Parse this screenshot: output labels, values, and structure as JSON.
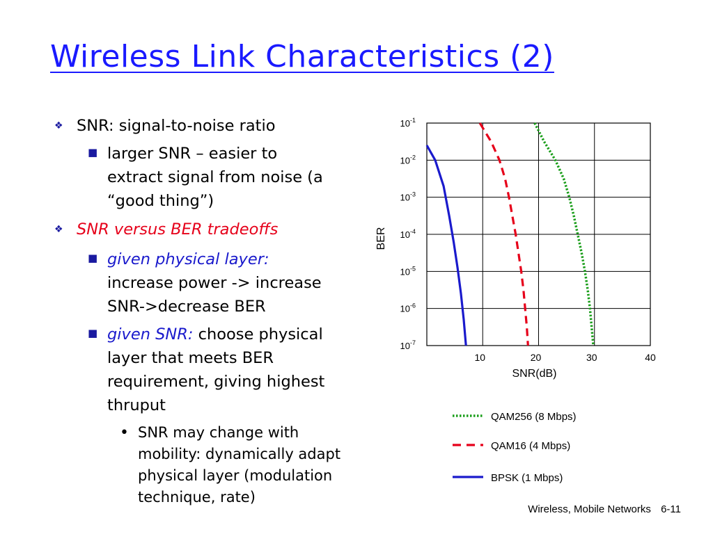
{
  "slide": {
    "title": "Wireless Link Characteristics (2)",
    "bullets": {
      "b1": "SNR: signal-to-noise ratio",
      "b1a": [
        "larger SNR – easier to",
        "extract signal from noise (a",
        "“good thing”)"
      ],
      "b2": "SNR versus BER tradeoffs",
      "b2a_em": "given physical layer:",
      "b2a_rest": [
        "increase power -> increase",
        "SNR->decrease BER"
      ],
      "b2b_em": "given SNR:",
      "b2b_rest": [
        "choose physical",
        "layer that meets BER",
        "requirement, giving highest",
        "thruput"
      ],
      "b2b1": [
        "SNR may change with",
        "mobility: dynamically adapt",
        "physical layer (modulation",
        "technique, rate)"
      ]
    },
    "footer": {
      "course": "Wireless, Mobile Networks",
      "page": "6-11"
    },
    "colors": {
      "title": "#1a1aff",
      "emphasis_red": "#e6001a",
      "emphasis_blue": "#1a1acc"
    }
  },
  "chart_data": {
    "type": "line",
    "xlabel": "SNR(dB)",
    "ylabel": "BER",
    "xlim": [
      0,
      40
    ],
    "y_log_exponent_range": [
      -7,
      -1
    ],
    "x_ticks": [
      "10",
      "20",
      "30",
      "40"
    ],
    "y_ticks": [
      {
        "base": "10",
        "exp": "-1"
      },
      {
        "base": "10",
        "exp": "-2"
      },
      {
        "base": "10",
        "exp": "-3"
      },
      {
        "base": "10",
        "exp": "-4"
      },
      {
        "base": "10",
        "exp": "-5"
      },
      {
        "base": "10",
        "exp": "-6"
      },
      {
        "base": "10",
        "exp": "-7"
      }
    ],
    "grid": true,
    "legend_position": "below",
    "series": [
      {
        "name": "QAM256 (8 Mbps)",
        "color": "#1a9e1a",
        "style": "dotted",
        "points": [
          [
            19.3,
            -1.0
          ],
          [
            21.0,
            -1.5
          ],
          [
            23.0,
            -2.0
          ],
          [
            24.5,
            -2.5
          ],
          [
            25.5,
            -3.0
          ],
          [
            26.3,
            -3.5
          ],
          [
            27.0,
            -4.0
          ],
          [
            27.7,
            -4.5
          ],
          [
            28.3,
            -5.0
          ],
          [
            28.8,
            -5.5
          ],
          [
            29.2,
            -6.0
          ],
          [
            29.5,
            -6.5
          ],
          [
            29.8,
            -7.0
          ]
        ]
      },
      {
        "name": "QAM16 (4 Mbps)",
        "color": "#e6001a",
        "style": "dashed",
        "points": [
          [
            9.5,
            -1.0
          ],
          [
            11.5,
            -1.5
          ],
          [
            13.0,
            -2.0
          ],
          [
            14.0,
            -2.5
          ],
          [
            14.7,
            -3.0
          ],
          [
            15.3,
            -3.5
          ],
          [
            15.9,
            -4.0
          ],
          [
            16.4,
            -4.5
          ],
          [
            16.9,
            -5.0
          ],
          [
            17.3,
            -5.5
          ],
          [
            17.6,
            -6.0
          ],
          [
            17.9,
            -6.5
          ],
          [
            18.1,
            -7.0
          ]
        ]
      },
      {
        "name": "BPSK (1 Mbps)",
        "color": "#1a1acc",
        "style": "solid",
        "points": [
          [
            0.0,
            -1.6
          ],
          [
            1.5,
            -2.0
          ],
          [
            3.0,
            -2.7
          ],
          [
            4.0,
            -3.5
          ],
          [
            4.8,
            -4.2
          ],
          [
            5.5,
            -4.9
          ],
          [
            6.1,
            -5.6
          ],
          [
            6.6,
            -6.3
          ],
          [
            7.0,
            -7.0
          ]
        ]
      }
    ]
  }
}
